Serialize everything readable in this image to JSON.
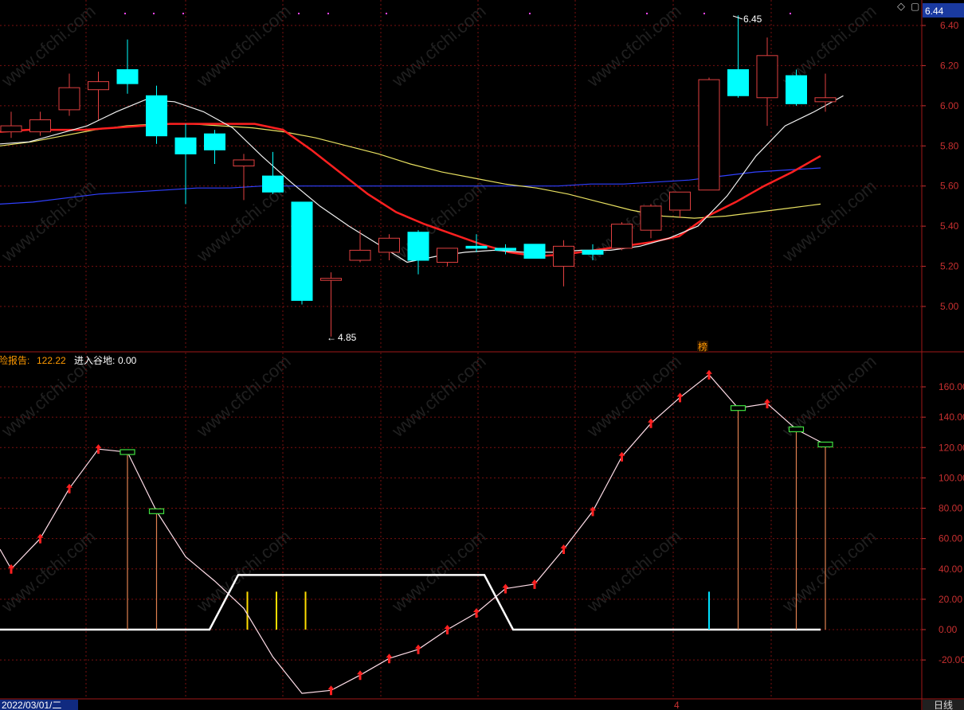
{
  "header": {
    "price_badge": "6.44",
    "diamond_icon": "diamond-icon",
    "menu_icon": "menu-icon"
  },
  "colors": {
    "up_candle": "#e04040",
    "down_candle": "#00ffff",
    "ma5": "#f0f0f0",
    "ma10": "#ff2020",
    "ma20": "#e8e060",
    "ma60": "#3040ff",
    "grid": "#7a1010",
    "axis_text": "#c83030"
  },
  "chart_data": [
    {
      "type": "candlestick",
      "title": "",
      "y_ticks": [
        "6.40",
        "6.20",
        "6.00",
        "5.80",
        "5.60",
        "5.40",
        "5.20",
        "5.00"
      ],
      "ylim": [
        4.83,
        6.5
      ],
      "annotations": {
        "high_label": "6.45",
        "low_label": "4.85",
        "marker_label": "榜"
      },
      "candles": [
        {
          "o": 5.87,
          "h": 5.97,
          "l": 5.84,
          "c": 5.9
        },
        {
          "o": 5.87,
          "h": 5.97,
          "l": 5.85,
          "c": 5.93
        },
        {
          "o": 5.98,
          "h": 6.16,
          "l": 5.95,
          "c": 6.09
        },
        {
          "o": 6.08,
          "h": 6.17,
          "l": 5.93,
          "c": 6.12
        },
        {
          "o": 6.18,
          "h": 6.33,
          "l": 6.06,
          "c": 6.11
        },
        {
          "o": 6.05,
          "h": 6.1,
          "l": 5.81,
          "c": 5.85
        },
        {
          "o": 5.84,
          "h": 5.91,
          "l": 5.51,
          "c": 5.76
        },
        {
          "o": 5.86,
          "h": 5.88,
          "l": 5.71,
          "c": 5.78
        },
        {
          "o": 5.7,
          "h": 5.76,
          "l": 5.53,
          "c": 5.73
        },
        {
          "o": 5.65,
          "h": 5.77,
          "l": 5.56,
          "c": 5.57
        },
        {
          "o": 5.52,
          "h": 5.52,
          "l": 5.01,
          "c": 5.03
        },
        {
          "o": 5.13,
          "h": 5.17,
          "l": 4.85,
          "c": 5.14
        },
        {
          "o": 5.23,
          "h": 5.38,
          "l": 5.22,
          "c": 5.28
        },
        {
          "o": 5.27,
          "h": 5.36,
          "l": 5.23,
          "c": 5.34
        },
        {
          "o": 5.37,
          "h": 5.38,
          "l": 5.16,
          "c": 5.23
        },
        {
          "o": 5.22,
          "h": 5.29,
          "l": 5.2,
          "c": 5.29
        },
        {
          "o": 5.3,
          "h": 5.36,
          "l": 5.27,
          "c": 5.29
        },
        {
          "o": 5.29,
          "h": 5.31,
          "l": 5.26,
          "c": 5.28
        },
        {
          "o": 5.31,
          "h": 5.31,
          "l": 5.24,
          "c": 5.24
        },
        {
          "o": 5.2,
          "h": 5.33,
          "l": 5.1,
          "c": 5.3
        },
        {
          "o": 5.28,
          "h": 5.31,
          "l": 5.23,
          "c": 5.26
        },
        {
          "o": 5.29,
          "h": 5.42,
          "l": 5.28,
          "c": 5.41
        },
        {
          "o": 5.38,
          "h": 5.51,
          "l": 5.34,
          "c": 5.5
        },
        {
          "o": 5.48,
          "h": 5.57,
          "l": 5.44,
          "c": 5.57
        },
        {
          "o": 5.58,
          "h": 6.14,
          "l": 5.58,
          "c": 6.13
        },
        {
          "o": 6.18,
          "h": 6.45,
          "l": 6.04,
          "c": 6.05
        },
        {
          "o": 6.04,
          "h": 6.34,
          "l": 5.9,
          "c": 6.25
        },
        {
          "o": 6.15,
          "h": 6.18,
          "l": 6.0,
          "c": 6.01
        },
        {
          "o": 6.02,
          "h": 6.16,
          "l": 5.97,
          "c": 6.04
        }
      ],
      "ma5": [
        5.81,
        5.82,
        5.86,
        5.9,
        5.97,
        6.03,
        6.02,
        5.97,
        5.89,
        5.75,
        5.62,
        5.5,
        5.4,
        5.31,
        5.22,
        5.25,
        5.27,
        5.28,
        5.27,
        5.27,
        5.28,
        5.28,
        5.3,
        5.34,
        5.4,
        5.55,
        5.75,
        5.9,
        5.97,
        6.05,
        6.1
      ],
      "ma10": [
        5.87,
        5.88,
        5.88,
        5.88,
        5.89,
        5.9,
        5.91,
        5.91,
        5.91,
        5.91,
        5.88,
        5.78,
        5.67,
        5.56,
        5.47,
        5.41,
        5.36,
        5.31,
        5.27,
        5.25,
        5.26,
        5.28,
        5.3,
        5.32,
        5.35,
        5.45,
        5.52,
        5.6,
        5.67,
        5.75
      ],
      "ma20": [
        5.8,
        5.82,
        5.85,
        5.88,
        5.9,
        5.91,
        5.91,
        5.9,
        5.89,
        5.87,
        5.84,
        5.8,
        5.76,
        5.71,
        5.67,
        5.64,
        5.61,
        5.59,
        5.56,
        5.52,
        5.48,
        5.45,
        5.44,
        5.45,
        5.47,
        5.49,
        5.51
      ],
      "ma60": [
        5.51,
        5.52,
        5.54,
        5.56,
        5.57,
        5.58,
        5.59,
        5.59,
        5.6,
        5.6,
        5.6,
        5.6,
        5.6,
        5.6,
        5.6,
        5.6,
        5.6,
        5.6,
        5.61,
        5.61,
        5.62,
        5.63,
        5.65,
        5.67,
        5.68,
        5.69
      ],
      "ma_series_x_count_note": ""
    },
    {
      "type": "line",
      "title": "",
      "legend": [
        {
          "label": "险报告:",
          "value": "122.22"
        },
        {
          "label": "进入谷地:",
          "value": "0.00"
        }
      ],
      "y_ticks": [
        "160.00",
        "140.00",
        "120.00",
        "100.00",
        "80.00",
        "60.00",
        "40.00",
        "20.00",
        "0.00",
        "-20.00"
      ],
      "ylim": [
        -45,
        180
      ],
      "line_values": [
        40,
        60,
        93,
        119,
        117,
        78,
        48,
        32,
        14,
        -18,
        -42,
        -40,
        -30,
        -19,
        -13,
        0,
        11,
        27,
        30,
        53,
        78,
        114,
        136,
        153,
        168,
        146,
        149,
        132,
        122
      ],
      "markers": [
        "up",
        "up",
        "up",
        "up",
        "box",
        "box",
        "none",
        "none",
        "none",
        "none",
        "none",
        "up",
        "up",
        "up",
        "up",
        "up",
        "up",
        "up",
        "up",
        "up",
        "up",
        "up",
        "up",
        "up",
        "up",
        "box",
        "up",
        "box",
        "box"
      ],
      "valley_trapezoid": {
        "base": 0,
        "top": 36,
        "start_index": 8,
        "end_index": 16
      },
      "yellow_bars": [
        9,
        10,
        11
      ],
      "orange_bars": [
        4,
        5,
        25,
        27,
        28
      ],
      "cyan_bars": [
        24
      ]
    }
  ],
  "footer": {
    "date_label": "2022/03/01/二",
    "period_label": "日线",
    "month_marker": "4"
  },
  "watermark": "www.cfchi.com"
}
